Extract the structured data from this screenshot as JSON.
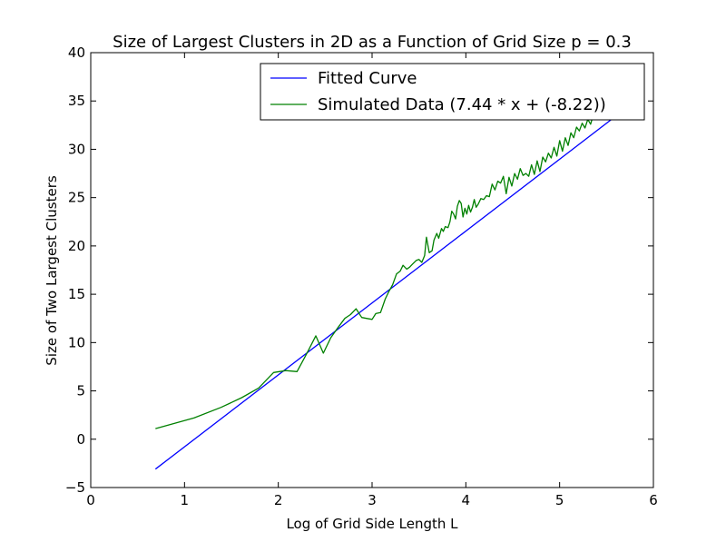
{
  "chart_data": {
    "type": "line",
    "title": "Size of Largest Clusters in 2D as a Function of Grid Size p = 0.3",
    "xlabel": "Log of Grid Side Length L",
    "ylabel": "Size of Two Largest Clusters",
    "xlim": [
      0,
      6
    ],
    "ylim": [
      -5,
      40
    ],
    "xticks": [
      0,
      1,
      2,
      3,
      4,
      5,
      6
    ],
    "yticks": [
      -5,
      0,
      5,
      10,
      15,
      20,
      25,
      30,
      35,
      40
    ],
    "grid": false,
    "legend_position": "top-right",
    "series": [
      {
        "name": "Fitted Curve",
        "color": "#0000ff",
        "x": [
          0.69,
          5.75
        ],
        "y": [
          -3.09,
          34.56
        ]
      },
      {
        "name": "Simulated Data (7.44 * x + (-8.22))",
        "color": "#008000",
        "x": [
          0.69,
          1.1,
          1.39,
          1.61,
          1.79,
          1.95,
          2.08,
          2.2,
          2.3,
          2.4,
          2.48,
          2.56,
          2.64,
          2.71,
          2.77,
          2.83,
          2.89,
          2.94,
          3.0,
          3.04,
          3.09,
          3.14,
          3.18,
          3.22,
          3.26,
          3.3,
          3.33,
          3.37,
          3.4,
          3.43,
          3.47,
          3.5,
          3.53,
          3.56,
          3.58,
          3.61,
          3.64,
          3.66,
          3.69,
          3.71,
          3.74,
          3.76,
          3.78,
          3.81,
          3.83,
          3.85,
          3.87,
          3.89,
          3.91,
          3.93,
          3.95,
          3.97,
          3.99,
          4.01,
          4.03,
          4.05,
          4.07,
          4.09,
          4.11,
          4.13,
          4.16,
          4.19,
          4.22,
          4.25,
          4.28,
          4.31,
          4.34,
          4.37,
          4.4,
          4.43,
          4.46,
          4.49,
          4.52,
          4.55,
          4.58,
          4.61,
          4.64,
          4.67,
          4.7,
          4.73,
          4.76,
          4.79,
          4.82,
          4.85,
          4.88,
          4.91,
          4.94,
          4.97,
          5.0,
          5.03,
          5.06,
          5.09,
          5.12,
          5.15,
          5.18,
          5.21,
          5.24,
          5.27,
          5.3,
          5.33,
          5.36,
          5.39,
          5.42,
          5.45,
          5.48,
          5.52,
          5.56,
          5.6,
          5.65
        ],
        "y": [
          1.1,
          2.2,
          3.3,
          4.3,
          5.3,
          6.9,
          7.1,
          7.0,
          8.8,
          10.7,
          8.9,
          10.5,
          11.6,
          12.5,
          12.9,
          13.5,
          12.6,
          12.5,
          12.4,
          13.0,
          13.1,
          14.5,
          15.3,
          16.0,
          17.1,
          17.4,
          18.0,
          17.6,
          17.8,
          18.1,
          18.5,
          18.6,
          18.3,
          19.0,
          20.9,
          19.3,
          19.5,
          20.6,
          21.3,
          20.8,
          21.8,
          21.5,
          22.0,
          21.9,
          22.5,
          23.6,
          23.3,
          22.8,
          24.1,
          24.7,
          24.4,
          23.0,
          23.9,
          23.3,
          24.2,
          23.5,
          24.0,
          24.8,
          24.0,
          24.3,
          24.9,
          24.8,
          25.2,
          25.1,
          26.4,
          25.8,
          26.7,
          26.5,
          27.2,
          25.4,
          27.1,
          26.2,
          27.5,
          26.9,
          28.0,
          27.3,
          27.5,
          27.2,
          28.4,
          27.4,
          28.8,
          27.7,
          29.2,
          28.7,
          29.6,
          29.1,
          30.2,
          29.3,
          30.9,
          29.8,
          31.2,
          30.4,
          31.7,
          31.2,
          32.3,
          31.9,
          32.7,
          32.2,
          33.1,
          32.6,
          33.6,
          33.3,
          34.0,
          34.3,
          34.7,
          35.3,
          35.7,
          36.5,
          37.3
        ]
      }
    ]
  }
}
